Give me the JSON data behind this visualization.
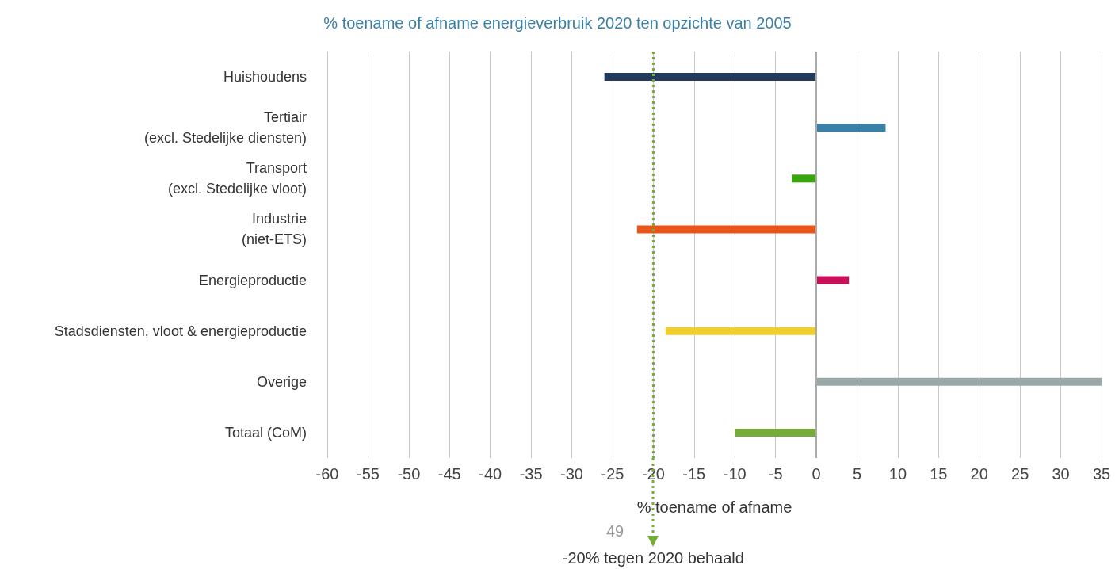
{
  "chart_data": {
    "type": "bar",
    "orientation": "horizontal",
    "title": "% toename of afname energieverbruik 2020 ten opzichte van 2005",
    "xlabel": "% toename of afname",
    "categories": [
      "Huishoudens",
      "Tertiair\n(excl. Stedelijke diensten)",
      "Transport\n(excl. Stedelijke vloot)",
      "Industrie\n(niet-ETS)",
      "Energieproductie",
      "Stadsdiensten, vloot & energieproductie",
      "Overige",
      "Totaal (CoM)"
    ],
    "values": [
      -26,
      8.5,
      -3,
      -22,
      4,
      -18.5,
      35,
      -10
    ],
    "colors": [
      "#243a5a",
      "#3a7fa5",
      "#3aa60e",
      "#e8561a",
      "#c8115a",
      "#f2cd2e",
      "#9aa8a8",
      "#76ad3a"
    ],
    "xlim": [
      -60,
      35
    ],
    "xticks": [
      -60,
      -55,
      -50,
      -45,
      -40,
      -35,
      -30,
      -25,
      -20,
      -15,
      -10,
      -5,
      0,
      5,
      10,
      15,
      20,
      25,
      30,
      35
    ],
    "grid": "x",
    "ref_lines": [
      {
        "axis": "x",
        "value": -20,
        "label": "-20% tegen 2020 behaald",
        "color": "#76ad3a",
        "line_style": "dotted"
      }
    ],
    "annotations": [
      "49"
    ]
  }
}
